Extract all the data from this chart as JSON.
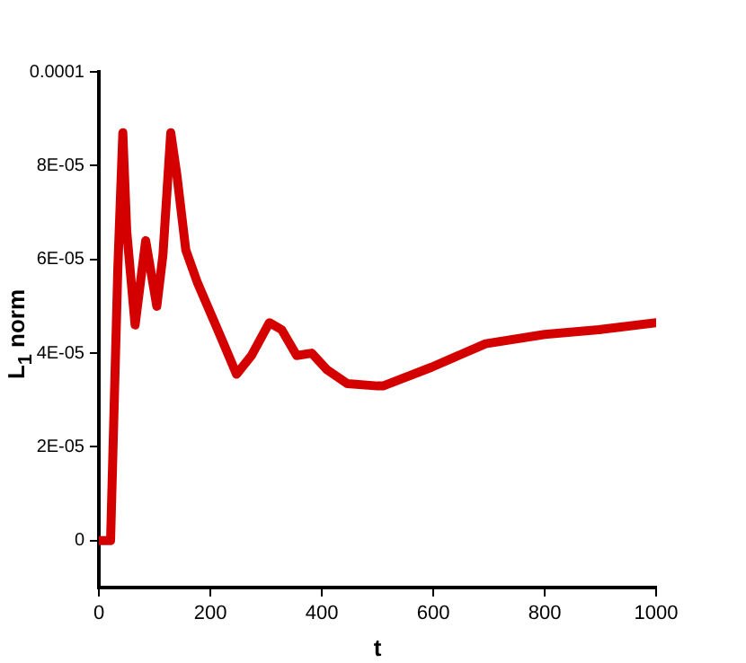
{
  "chart_data": {
    "type": "line",
    "xlabel": "t",
    "ylabel": "L$_{1}$ norm",
    "x": [
      0,
      21,
      34,
      43,
      50,
      65,
      84,
      104,
      115,
      129,
      140,
      156,
      177,
      215,
      247,
      274,
      306,
      328,
      355,
      382,
      409,
      446,
      500,
      510,
      597,
      694,
      800,
      897,
      1000
    ],
    "series": [
      {
        "color": "#d40000",
        "values": [
          0,
          0,
          5.8e-05,
          8.7e-05,
          6.6e-05,
          4.6e-05,
          6.4e-05,
          5e-05,
          6.1e-05,
          8.7e-05,
          7.8e-05,
          6.2e-05,
          5.5e-05,
          4.45e-05,
          3.55e-05,
          3.95e-05,
          4.65e-05,
          4.5e-05,
          3.95e-05,
          4e-05,
          3.65e-05,
          3.35e-05,
          3.3e-05,
          3.3e-05,
          3.7e-05,
          4.2e-05,
          4.4e-05,
          4.5e-05,
          4.65e-05
        ]
      }
    ],
    "xlim": [
      0,
      1000
    ],
    "ylim": [
      -1e-05,
      0.0001
    ],
    "xticks": [
      0,
      200,
      400,
      600,
      800,
      1000
    ],
    "yticks": [
      0,
      {
        "value": 2e-05,
        "label": "2E-05"
      },
      {
        "value": 4e-05,
        "label": "4E-05"
      },
      {
        "value": 6e-05,
        "label": "6E-05"
      },
      {
        "value": 8e-05,
        "label": "8E-05"
      },
      0.0001
    ],
    "marker": "none",
    "line_style": "solid",
    "legend": false,
    "grid": false
  }
}
